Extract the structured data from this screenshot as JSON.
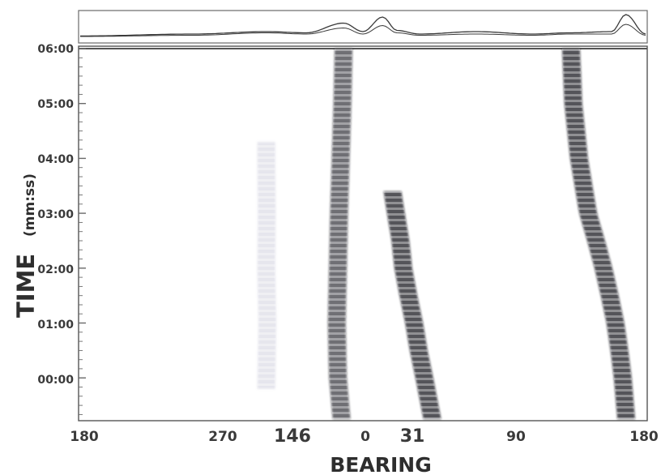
{
  "chart_data": {
    "type": "heatmap",
    "title": "",
    "xlabel": "BEARING",
    "ylabel": "TIME",
    "ylabel_unit": "(mm:ss)",
    "x_tick_labels": [
      "180",
      "270",
      "146",
      "0",
      "31",
      "90",
      "180"
    ],
    "y_tick_labels": [
      "06:00",
      "05:00",
      "04:00",
      "03:00",
      "02:00",
      "01:00",
      "00:00"
    ],
    "ylim_minutes": [
      -0.75,
      6.0
    ],
    "grid": false,
    "colors": {
      "trace": "#1c1c24",
      "faint_trace": "#8a8aa8",
      "frame": "#555555"
    },
    "tracks": [
      {
        "points": [
          [
            -0.75,
            0.4625
          ],
          [
            0.0,
            0.456
          ],
          [
            1.0,
            0.454
          ],
          [
            2.0,
            0.456
          ],
          [
            3.0,
            0.458
          ],
          [
            4.0,
            0.461
          ],
          [
            5.0,
            0.464
          ],
          [
            6.0,
            0.466
          ]
        ],
        "intensity": 0.85
      },
      {
        "points": [
          [
            -0.75,
            0.622
          ],
          [
            0.0,
            0.608
          ],
          [
            0.5,
            0.598
          ],
          [
            1.0,
            0.59
          ],
          [
            1.5,
            0.58
          ],
          [
            2.0,
            0.571
          ],
          [
            2.5,
            0.566
          ],
          [
            3.0,
            0.558
          ],
          [
            3.4,
            0.552
          ]
        ],
        "intensity": 1.0
      },
      {
        "points": [
          [
            -0.75,
            0.963
          ],
          [
            0.0,
            0.957
          ],
          [
            0.5,
            0.951
          ],
          [
            1.0,
            0.944
          ],
          [
            1.5,
            0.934
          ],
          [
            2.0,
            0.923
          ],
          [
            2.5,
            0.91
          ],
          [
            3.0,
            0.896
          ],
          [
            4.0,
            0.88
          ],
          [
            5.0,
            0.87
          ],
          [
            6.0,
            0.866
          ]
        ],
        "intensity": 1.0
      },
      {
        "points": [
          [
            -0.2,
            0.33
          ],
          [
            1.0,
            0.332
          ],
          [
            2.0,
            0.33
          ],
          [
            3.0,
            0.331
          ],
          [
            4.0,
            0.33
          ],
          [
            4.3,
            0.33
          ]
        ],
        "intensity": 0.28
      }
    ],
    "top_panel": {
      "series": [
        {
          "x": [
            0.0,
            0.2,
            0.33,
            0.4,
            0.466,
            0.5,
            0.535,
            0.56,
            0.6,
            0.7,
            0.8,
            0.866,
            0.94,
            0.965,
            1.0
          ],
          "y": [
            0.12,
            0.2,
            0.3,
            0.25,
            0.65,
            0.3,
            0.9,
            0.35,
            0.2,
            0.3,
            0.2,
            0.25,
            0.3,
            1.0,
            0.2
          ]
        },
        {
          "x": [
            0.0,
            0.2,
            0.33,
            0.4,
            0.466,
            0.5,
            0.535,
            0.56,
            0.6,
            0.7,
            0.8,
            0.866,
            0.94,
            0.965,
            1.0
          ],
          "y": [
            0.1,
            0.15,
            0.25,
            0.2,
            0.45,
            0.2,
            0.55,
            0.25,
            0.15,
            0.2,
            0.15,
            0.2,
            0.2,
            0.6,
            0.15
          ]
        }
      ]
    }
  }
}
